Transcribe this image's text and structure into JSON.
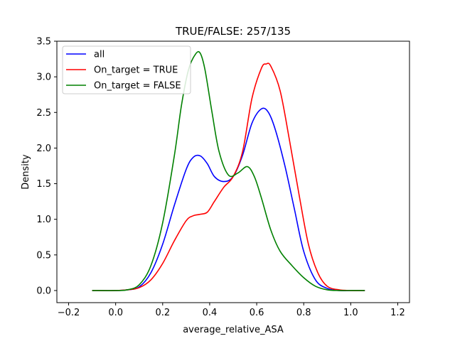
{
  "chart_data": {
    "type": "line",
    "title": "TRUE/FALSE: 257/135",
    "xlabel": "average_relative_ASA",
    "ylabel": "Density",
    "xlim": [
      -0.25,
      1.25
    ],
    "ylim": [
      -0.17,
      3.5
    ],
    "xticks": [
      -0.2,
      0.0,
      0.2,
      0.4,
      0.6,
      0.8,
      1.0,
      1.2
    ],
    "xtick_labels": [
      "−0.2",
      "0.0",
      "0.2",
      "0.4",
      "0.6",
      "0.8",
      "1.0",
      "1.2"
    ],
    "yticks": [
      0.0,
      0.5,
      1.0,
      1.5,
      2.0,
      2.5,
      3.0,
      3.5
    ],
    "ytick_labels": [
      "0.0",
      "0.5",
      "1.0",
      "1.5",
      "2.0",
      "2.5",
      "3.0",
      "3.5"
    ],
    "grid": false,
    "legend_position": "top-left",
    "series": [
      {
        "name": "all",
        "color": "#0000ff",
        "x": [
          -0.1,
          0.0,
          0.05,
          0.1,
          0.15,
          0.2,
          0.25,
          0.3,
          0.33,
          0.36,
          0.39,
          0.42,
          0.46,
          0.5,
          0.54,
          0.58,
          0.62,
          0.65,
          0.68,
          0.72,
          0.76,
          0.8,
          0.85,
          0.9,
          0.95,
          1.0,
          1.06
        ],
        "y": [
          0.0,
          0.0,
          0.01,
          0.05,
          0.25,
          0.65,
          1.2,
          1.7,
          1.87,
          1.89,
          1.78,
          1.6,
          1.53,
          1.6,
          1.9,
          2.35,
          2.55,
          2.5,
          2.25,
          1.75,
          1.15,
          0.55,
          0.15,
          0.03,
          0.0,
          0.0,
          0.0
        ]
      },
      {
        "name": "On_target = TRUE",
        "color": "#ff0000",
        "x": [
          -0.1,
          0.0,
          0.05,
          0.1,
          0.15,
          0.2,
          0.25,
          0.3,
          0.33,
          0.36,
          0.39,
          0.42,
          0.46,
          0.5,
          0.54,
          0.58,
          0.62,
          0.64,
          0.66,
          0.7,
          0.74,
          0.78,
          0.82,
          0.86,
          0.9,
          0.95,
          1.0,
          1.06
        ],
        "y": [
          0.0,
          0.0,
          0.01,
          0.04,
          0.15,
          0.38,
          0.7,
          0.98,
          1.05,
          1.07,
          1.1,
          1.25,
          1.45,
          1.6,
          1.95,
          2.7,
          3.12,
          3.18,
          3.15,
          2.8,
          2.1,
          1.35,
          0.65,
          0.25,
          0.06,
          0.01,
          0.0,
          0.0
        ]
      },
      {
        "name": "On_target = FALSE",
        "color": "#008000",
        "x": [
          -0.1,
          0.0,
          0.05,
          0.1,
          0.15,
          0.2,
          0.25,
          0.28,
          0.31,
          0.34,
          0.36,
          0.38,
          0.41,
          0.44,
          0.48,
          0.52,
          0.56,
          0.59,
          0.62,
          0.66,
          0.7,
          0.75,
          0.8,
          0.85,
          0.9,
          0.95,
          1.0,
          1.06
        ],
        "y": [
          0.0,
          0.0,
          0.01,
          0.08,
          0.35,
          0.95,
          1.9,
          2.6,
          3.1,
          3.32,
          3.33,
          3.1,
          2.5,
          1.95,
          1.62,
          1.65,
          1.74,
          1.6,
          1.3,
          0.85,
          0.55,
          0.35,
          0.18,
          0.06,
          0.01,
          0.0,
          0.0,
          0.0
        ]
      }
    ]
  }
}
